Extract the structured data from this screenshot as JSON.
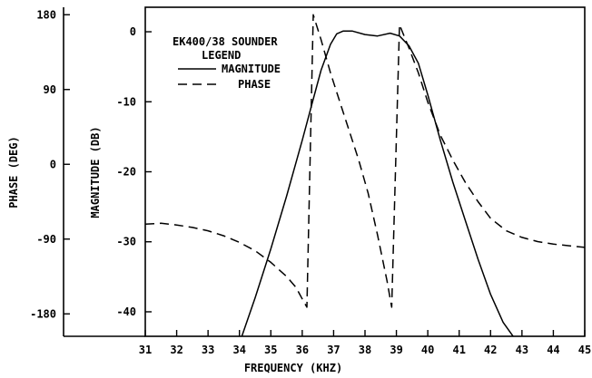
{
  "chart_data": {
    "type": "line",
    "title": "EK400/38 SOUNDER",
    "legend": {
      "title": "LEGEND",
      "placement": "top-left",
      "entries": [
        {
          "label": "MAGNITUDE",
          "style": "solid"
        },
        {
          "label": "PHASE",
          "style": "dashed"
        }
      ]
    },
    "xlabel": "FREQUENCY (KHZ)",
    "y_left_outer_label": "PHASE (DEG)",
    "y_left_inner_label": "MAGNITUDE (DB)",
    "xlim": [
      31,
      45
    ],
    "ylim_magnitude": [
      -43.5,
      3.5
    ],
    "ylim_phase": [
      -207,
      189
    ],
    "x_ticks": [
      "31",
      "32",
      "33",
      "34",
      "35",
      "36",
      "37",
      "38",
      "39",
      "40",
      "41",
      "42",
      "43",
      "44",
      "45"
    ],
    "phase_ticks": [
      "180",
      "90",
      "0",
      "-90",
      "-180"
    ],
    "magnitude_ticks": [
      "0",
      "-10",
      "-20",
      "-30",
      "-40"
    ],
    "grid": false,
    "series": [
      {
        "name": "MAGNITUDE",
        "style": "solid",
        "axis": "magnitude",
        "x": [
          34.0,
          34.5,
          35.0,
          35.5,
          36.0,
          36.3,
          36.6,
          36.9,
          37.1,
          37.3,
          37.6,
          38.0,
          38.4,
          38.8,
          39.1,
          39.4,
          39.7,
          40.0,
          40.4,
          40.8,
          41.2,
          41.6,
          42.0,
          42.4,
          42.8
        ],
        "values": [
          -44.5,
          -38,
          -31,
          -23.5,
          -15.5,
          -10.5,
          -5.5,
          -1.8,
          -0.3,
          0.1,
          0.1,
          -0.4,
          -0.6,
          -0.2,
          -0.6,
          -2.0,
          -4.5,
          -9.0,
          -15.5,
          -21.5,
          -27.0,
          -32.5,
          -37.5,
          -41.5,
          -44.0
        ]
      },
      {
        "name": "PHASE",
        "style": "dashed",
        "axis": "phase",
        "x": [
          31.0,
          31.5,
          32.0,
          32.5,
          33.0,
          33.5,
          34.0,
          34.5,
          35.0,
          35.5,
          35.8,
          36.0,
          36.15,
          36.35,
          36.6,
          36.9,
          37.2,
          37.5,
          37.8,
          38.1,
          38.4,
          38.7,
          38.85,
          39.1,
          39.4,
          39.7,
          40.0,
          40.4,
          40.8,
          41.2,
          41.6,
          42.0,
          42.5,
          43.0,
          43.5,
          44.0,
          44.5,
          45.0
        ],
        "values": [
          -72,
          -71,
          -73,
          -76,
          -80,
          -86,
          -94,
          -104,
          -118,
          -135,
          -148,
          -162,
          -172,
          180,
          150,
          110,
          75,
          40,
          5,
          -35,
          -85,
          -140,
          -172,
          168,
          140,
          110,
          75,
          35,
          5,
          -22,
          -45,
          -65,
          -80,
          -88,
          -93,
          -96,
          -98,
          -100
        ]
      }
    ]
  }
}
